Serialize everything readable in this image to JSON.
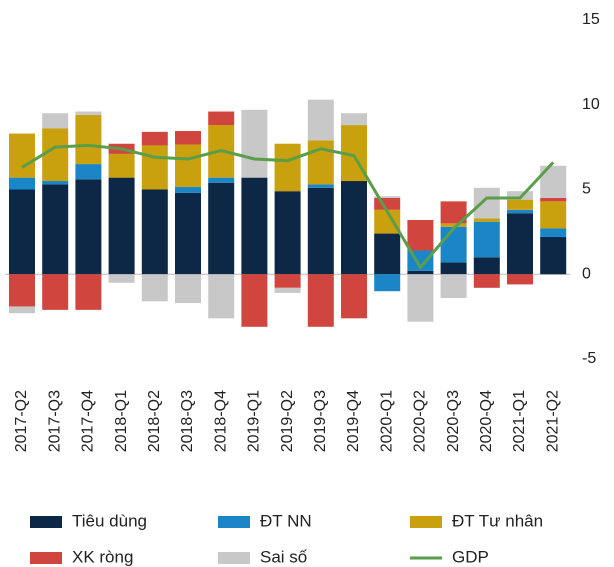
{
  "chart_data": {
    "type": "bar",
    "stacked": true,
    "categories": [
      "2017-Q2",
      "2017-Q3",
      "2017-Q4",
      "2018-Q1",
      "2018-Q2",
      "2018-Q3",
      "2018-Q4",
      "2019-Q1",
      "2019-Q2",
      "2019-Q3",
      "2019-Q4",
      "2020-Q1",
      "2020-Q2",
      "2020-Q3",
      "2020-Q4",
      "2021-Q1",
      "2021-Q2"
    ],
    "series": [
      {
        "name": "Tiêu dùng",
        "color": "#0d2847",
        "values": [
          5.0,
          5.3,
          5.6,
          5.7,
          5.0,
          4.8,
          5.4,
          5.7,
          4.9,
          5.1,
          5.5,
          2.4,
          0.2,
          0.7,
          1.0,
          3.6,
          2.2
        ]
      },
      {
        "name": "ĐT NN",
        "color": "#1a86c8",
        "values": [
          0.7,
          0.2,
          0.9,
          0,
          0,
          0.35,
          0.3,
          0,
          0,
          0.2,
          0,
          -1.0,
          1.2,
          2.1,
          2.1,
          0.2,
          0.5
        ]
      },
      {
        "name": "ĐT Tư nhân",
        "color": "#c9a00e",
        "values": [
          2.6,
          3.1,
          2.9,
          1.4,
          2.6,
          2.5,
          3.1,
          0,
          2.8,
          2.6,
          3.3,
          1.4,
          0,
          0.2,
          0.2,
          0.6,
          1.6
        ]
      },
      {
        "name": "XK ròng",
        "color": "#d0463f",
        "values": [
          -1.9,
          -2.1,
          -2.1,
          0.6,
          0.8,
          0.8,
          0.8,
          -3.1,
          -0.8,
          -3.1,
          -2.6,
          0.7,
          1.8,
          1.3,
          -0.8,
          -0.6,
          0.2
        ]
      },
      {
        "name": "Sai số",
        "color": "#c8c8c8",
        "values": [
          -0.4,
          0.9,
          0.2,
          -0.5,
          -1.6,
          -1.7,
          -2.6,
          4.0,
          -0.3,
          2.4,
          0.7,
          0.1,
          -2.8,
          -1.4,
          1.8,
          0.5,
          1.9
        ]
      },
      {
        "name": "GDP",
        "color": "#5a9e4a",
        "type": "line",
        "values": [
          6.3,
          7.5,
          7.6,
          7.4,
          6.9,
          6.8,
          7.3,
          6.8,
          6.7,
          7.4,
          7.0,
          3.7,
          0.4,
          2.7,
          4.5,
          4.5,
          6.6
        ]
      }
    ],
    "ylim": [
      -5,
      15
    ],
    "yticks": [
      -5,
      0,
      5,
      10,
      15
    ],
    "grid": false,
    "legend": "bottom"
  }
}
